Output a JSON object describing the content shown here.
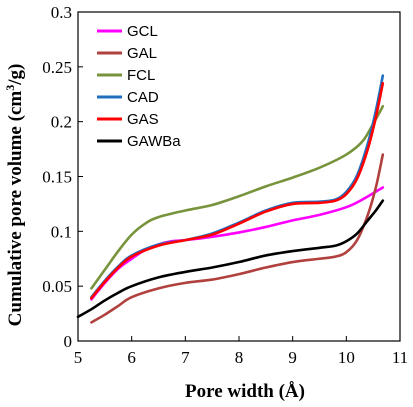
{
  "chart_data": {
    "type": "line",
    "xlabel": "Pore width (Å)",
    "ylabel_main": "Cumulative pore volume (cm",
    "ylabel_sup": "3",
    "ylabel_end": "/g)",
    "xlim": [
      5,
      11
    ],
    "ylim": [
      0,
      0.3
    ],
    "xticks": [
      "5",
      "6",
      "7",
      "8",
      "9",
      "10",
      "11"
    ],
    "yticks": [
      "0",
      "0.05",
      "0.1",
      "0.15",
      "0.2",
      "0.25",
      "0.3"
    ],
    "legend_position": "top-left",
    "series": [
      {
        "name": "GCL",
        "color": "#ff00ff",
        "x": [
          5.25,
          5.5,
          5.75,
          6.0,
          6.25,
          6.5,
          6.75,
          7.0,
          7.5,
          8.0,
          8.5,
          9.0,
          9.5,
          10.0,
          10.3,
          10.68
        ],
        "y": [
          0.038,
          0.053,
          0.066,
          0.075,
          0.083,
          0.088,
          0.091,
          0.092,
          0.095,
          0.099,
          0.104,
          0.11,
          0.115,
          0.122,
          0.129,
          0.14
        ]
      },
      {
        "name": "GAL",
        "color": "#b0413e",
        "x": [
          5.25,
          5.5,
          5.75,
          6.0,
          6.5,
          7.0,
          7.5,
          8.0,
          8.5,
          9.0,
          9.5,
          9.8,
          10.0,
          10.2,
          10.4,
          10.55,
          10.68
        ],
        "y": [
          0.017,
          0.024,
          0.032,
          0.04,
          0.048,
          0.053,
          0.056,
          0.061,
          0.067,
          0.072,
          0.075,
          0.077,
          0.081,
          0.092,
          0.115,
          0.14,
          0.17
        ]
      },
      {
        "name": "FCL",
        "color": "#77933c",
        "x": [
          5.25,
          5.5,
          5.75,
          6.0,
          6.25,
          6.5,
          7.0,
          7.5,
          8.0,
          8.5,
          9.0,
          9.5,
          10.0,
          10.3,
          10.5,
          10.68
        ],
        "y": [
          0.048,
          0.065,
          0.082,
          0.097,
          0.107,
          0.113,
          0.119,
          0.124,
          0.132,
          0.141,
          0.149,
          0.158,
          0.17,
          0.182,
          0.198,
          0.214
        ]
      },
      {
        "name": "CAD",
        "color": "#1f6fbf",
        "x": [
          5.25,
          5.5,
          5.75,
          6.0,
          6.5,
          7.0,
          7.5,
          8.0,
          8.5,
          9.0,
          9.5,
          9.8,
          10.0,
          10.2,
          10.4,
          10.55,
          10.68
        ],
        "y": [
          0.04,
          0.055,
          0.068,
          0.078,
          0.088,
          0.092,
          0.098,
          0.108,
          0.119,
          0.126,
          0.127,
          0.129,
          0.136,
          0.151,
          0.18,
          0.21,
          0.242
        ]
      },
      {
        "name": "GAS",
        "color": "#ff0000",
        "x": [
          5.25,
          5.5,
          5.75,
          6.0,
          6.5,
          7.0,
          7.5,
          8.0,
          8.5,
          9.0,
          9.5,
          9.8,
          10.0,
          10.2,
          10.4,
          10.55,
          10.68
        ],
        "y": [
          0.039,
          0.054,
          0.067,
          0.077,
          0.087,
          0.092,
          0.097,
          0.107,
          0.118,
          0.125,
          0.126,
          0.128,
          0.134,
          0.148,
          0.175,
          0.204,
          0.235
        ]
      },
      {
        "name": "GAWBa",
        "color": "#000000",
        "x": [
          5.0,
          5.25,
          5.5,
          5.75,
          6.0,
          6.5,
          7.0,
          7.5,
          8.0,
          8.5,
          9.0,
          9.5,
          9.8,
          10.0,
          10.2,
          10.4,
          10.55,
          10.68
        ],
        "y": [
          0.022,
          0.029,
          0.037,
          0.044,
          0.05,
          0.058,
          0.063,
          0.067,
          0.072,
          0.078,
          0.082,
          0.085,
          0.087,
          0.091,
          0.098,
          0.11,
          0.119,
          0.128
        ]
      }
    ]
  }
}
